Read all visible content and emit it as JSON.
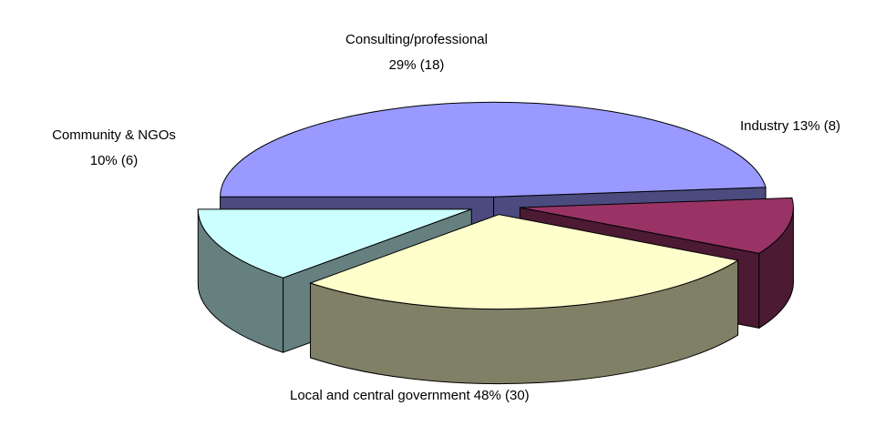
{
  "chart_data": {
    "type": "pie",
    "style": "3d-exploded",
    "title": "",
    "slices": [
      {
        "category": "Local and central government",
        "value": 30,
        "percent": 48,
        "percent_label": "48% (30)",
        "color": "#9999FF",
        "side_color": "#4B4B7F"
      },
      {
        "category": "Community & NGOs",
        "value": 6,
        "percent": 10,
        "percent_label": "10% (6)",
        "color": "#993366",
        "side_color": "#4C1A33"
      },
      {
        "category": "Consulting/professional",
        "value": 18,
        "percent": 29,
        "percent_label": "29% (18)",
        "color": "#FFFFCC",
        "side_color": "#808066"
      },
      {
        "category": "Industry",
        "value": 8,
        "percent": 13,
        "percent_label": "13% (8)",
        "color": "#CCFFFF",
        "side_color": "#668080"
      }
    ],
    "legend": "none",
    "labels": {
      "consulting_line1": "Consulting/professional",
      "consulting_line2": "29% (18)",
      "community_line1": "Community & NGOs",
      "community_line2": "10% (6)",
      "industry": "Industry 13% (8)",
      "government": "Local and central government 48% (30)"
    }
  }
}
